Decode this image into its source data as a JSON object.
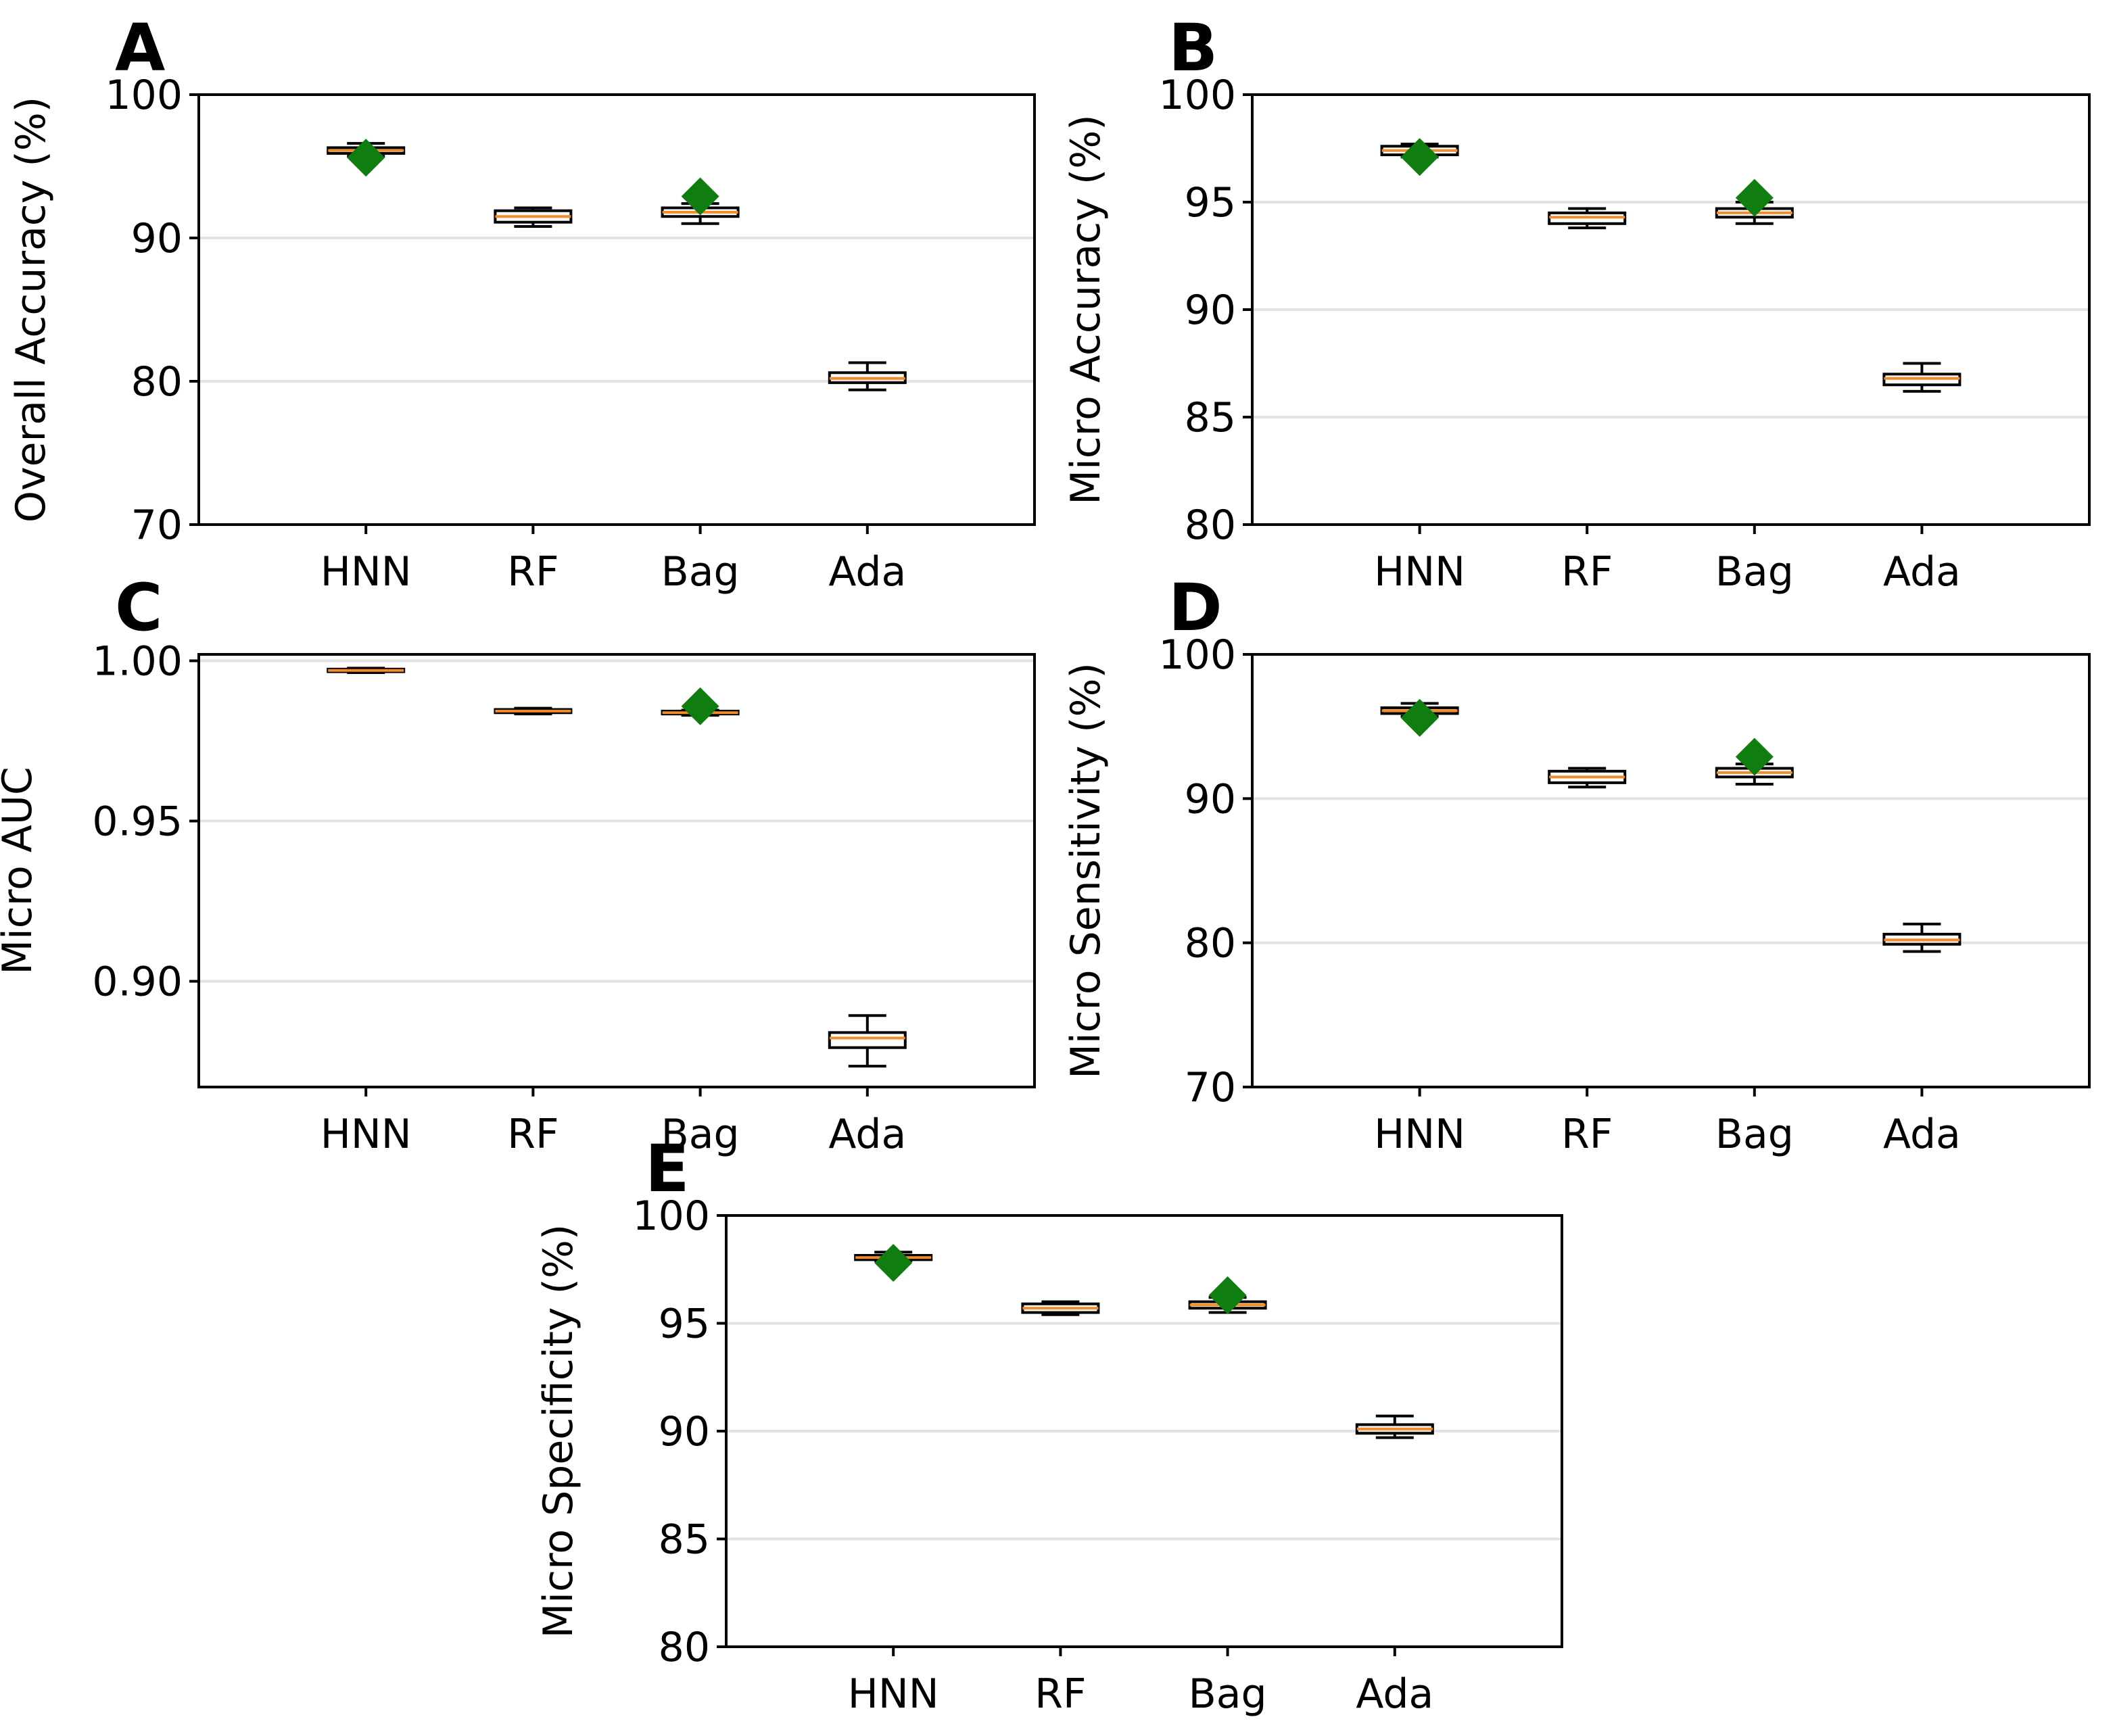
{
  "colors": {
    "box": "#000000",
    "median": "#f28c28",
    "mean_marker": "#0f7d0f",
    "grid": "#e3e3e3"
  },
  "chart_data": [
    {
      "panel": "A",
      "type": "box",
      "ylabel": "Overall Accuracy (%)",
      "ylim": [
        70,
        100
      ],
      "yticks": [
        "70",
        "80",
        "90",
        "100"
      ],
      "categories": [
        "HNN",
        "RF",
        "Bag",
        "Ada"
      ],
      "grid": "y",
      "boxes": [
        {
          "category": "HNN",
          "min": 95.7,
          "q1": 95.9,
          "median": 96.1,
          "q3": 96.3,
          "max": 96.6,
          "mean": 95.6
        },
        {
          "category": "RF",
          "min": 90.8,
          "q1": 91.1,
          "median": 91.5,
          "q3": 91.9,
          "max": 92.1,
          "mean": 91.5
        },
        {
          "category": "Bag",
          "min": 91.0,
          "q1": 91.5,
          "median": 91.8,
          "q3": 92.1,
          "max": 92.4,
          "mean": 92.9
        },
        {
          "category": "Ada",
          "min": 79.4,
          "q1": 79.9,
          "median": 80.2,
          "q3": 80.6,
          "max": 81.3,
          "mean": 80.1
        }
      ]
    },
    {
      "panel": "B",
      "type": "box",
      "ylabel": "Micro Accuracy (%)",
      "ylim": [
        80,
        100
      ],
      "yticks": [
        "80",
        "85",
        "90",
        "95",
        "100"
      ],
      "categories": [
        "HNN",
        "RF",
        "Bag",
        "Ada"
      ],
      "grid": "y",
      "boxes": [
        {
          "category": "HNN",
          "min": 97.1,
          "q1": 97.2,
          "median": 97.4,
          "q3": 97.6,
          "max": 97.7,
          "mean": 97.1
        },
        {
          "category": "RF",
          "min": 93.8,
          "q1": 94.0,
          "median": 94.3,
          "q3": 94.5,
          "max": 94.7,
          "mean": 94.3
        },
        {
          "category": "Bag",
          "min": 94.0,
          "q1": 94.3,
          "median": 94.5,
          "q3": 94.7,
          "max": 95.0,
          "mean": 95.2
        },
        {
          "category": "Ada",
          "min": 86.2,
          "q1": 86.5,
          "median": 86.8,
          "q3": 87.0,
          "max": 87.5,
          "mean": 86.8
        }
      ]
    },
    {
      "panel": "C",
      "type": "box",
      "ylabel": "Micro AUC",
      "ylim": [
        0.867,
        1.002
      ],
      "yticks": [
        "0.90",
        "0.95",
        "1.00"
      ],
      "categories": [
        "HNN",
        "RF",
        "Bag",
        "Ada"
      ],
      "grid": "y",
      "boxes": [
        {
          "category": "HNN",
          "min": 0.9963,
          "q1": 0.9966,
          "median": 0.997,
          "q3": 0.9974,
          "max": 0.9977,
          "mean": 0.997
        },
        {
          "category": "RF",
          "min": 0.9834,
          "q1": 0.9838,
          "median": 0.9843,
          "q3": 0.9848,
          "max": 0.9852,
          "mean": 0.9843
        },
        {
          "category": "Bag",
          "min": 0.983,
          "q1": 0.9834,
          "median": 0.9838,
          "q3": 0.9843,
          "max": 0.9846,
          "mean": 0.9858
        },
        {
          "category": "Ada",
          "min": 0.8735,
          "q1": 0.8793,
          "median": 0.8823,
          "q3": 0.884,
          "max": 0.8893,
          "mean": 0.8823
        }
      ]
    },
    {
      "panel": "D",
      "type": "box",
      "ylabel": "Micro Sensitivity (%)",
      "ylim": [
        70,
        100
      ],
      "yticks": [
        "70",
        "80",
        "90",
        "100"
      ],
      "categories": [
        "HNN",
        "RF",
        "Bag",
        "Ada"
      ],
      "grid": "y",
      "boxes": [
        {
          "category": "HNN",
          "min": 95.7,
          "q1": 95.9,
          "median": 96.1,
          "q3": 96.3,
          "max": 96.6,
          "mean": 95.6
        },
        {
          "category": "RF",
          "min": 90.8,
          "q1": 91.1,
          "median": 91.5,
          "q3": 91.9,
          "max": 92.1,
          "mean": 91.5
        },
        {
          "category": "Bag",
          "min": 91.0,
          "q1": 91.5,
          "median": 91.8,
          "q3": 92.1,
          "max": 92.4,
          "mean": 92.9
        },
        {
          "category": "Ada",
          "min": 79.4,
          "q1": 79.9,
          "median": 80.2,
          "q3": 80.6,
          "max": 81.3,
          "mean": 80.1
        }
      ]
    },
    {
      "panel": "E",
      "type": "box",
      "ylabel": "Micro Specificity (%)",
      "ylim": [
        80,
        100
      ],
      "yticks": [
        "80",
        "85",
        "90",
        "95",
        "100"
      ],
      "categories": [
        "HNN",
        "RF",
        "Bag",
        "Ada"
      ],
      "grid": "y",
      "boxes": [
        {
          "category": "HNN",
          "min": 97.9,
          "q1": 97.95,
          "median": 98.05,
          "q3": 98.15,
          "max": 98.3,
          "mean": 97.8
        },
        {
          "category": "RF",
          "min": 95.4,
          "q1": 95.5,
          "median": 95.7,
          "q3": 95.9,
          "max": 96.0,
          "mean": 95.7
        },
        {
          "category": "Bag",
          "min": 95.5,
          "q1": 95.7,
          "median": 95.85,
          "q3": 96.0,
          "max": 96.2,
          "mean": 96.3
        },
        {
          "category": "Ada",
          "min": 89.7,
          "q1": 89.9,
          "median": 90.1,
          "q3": 90.3,
          "max": 90.7,
          "mean": 90.1
        }
      ]
    }
  ]
}
